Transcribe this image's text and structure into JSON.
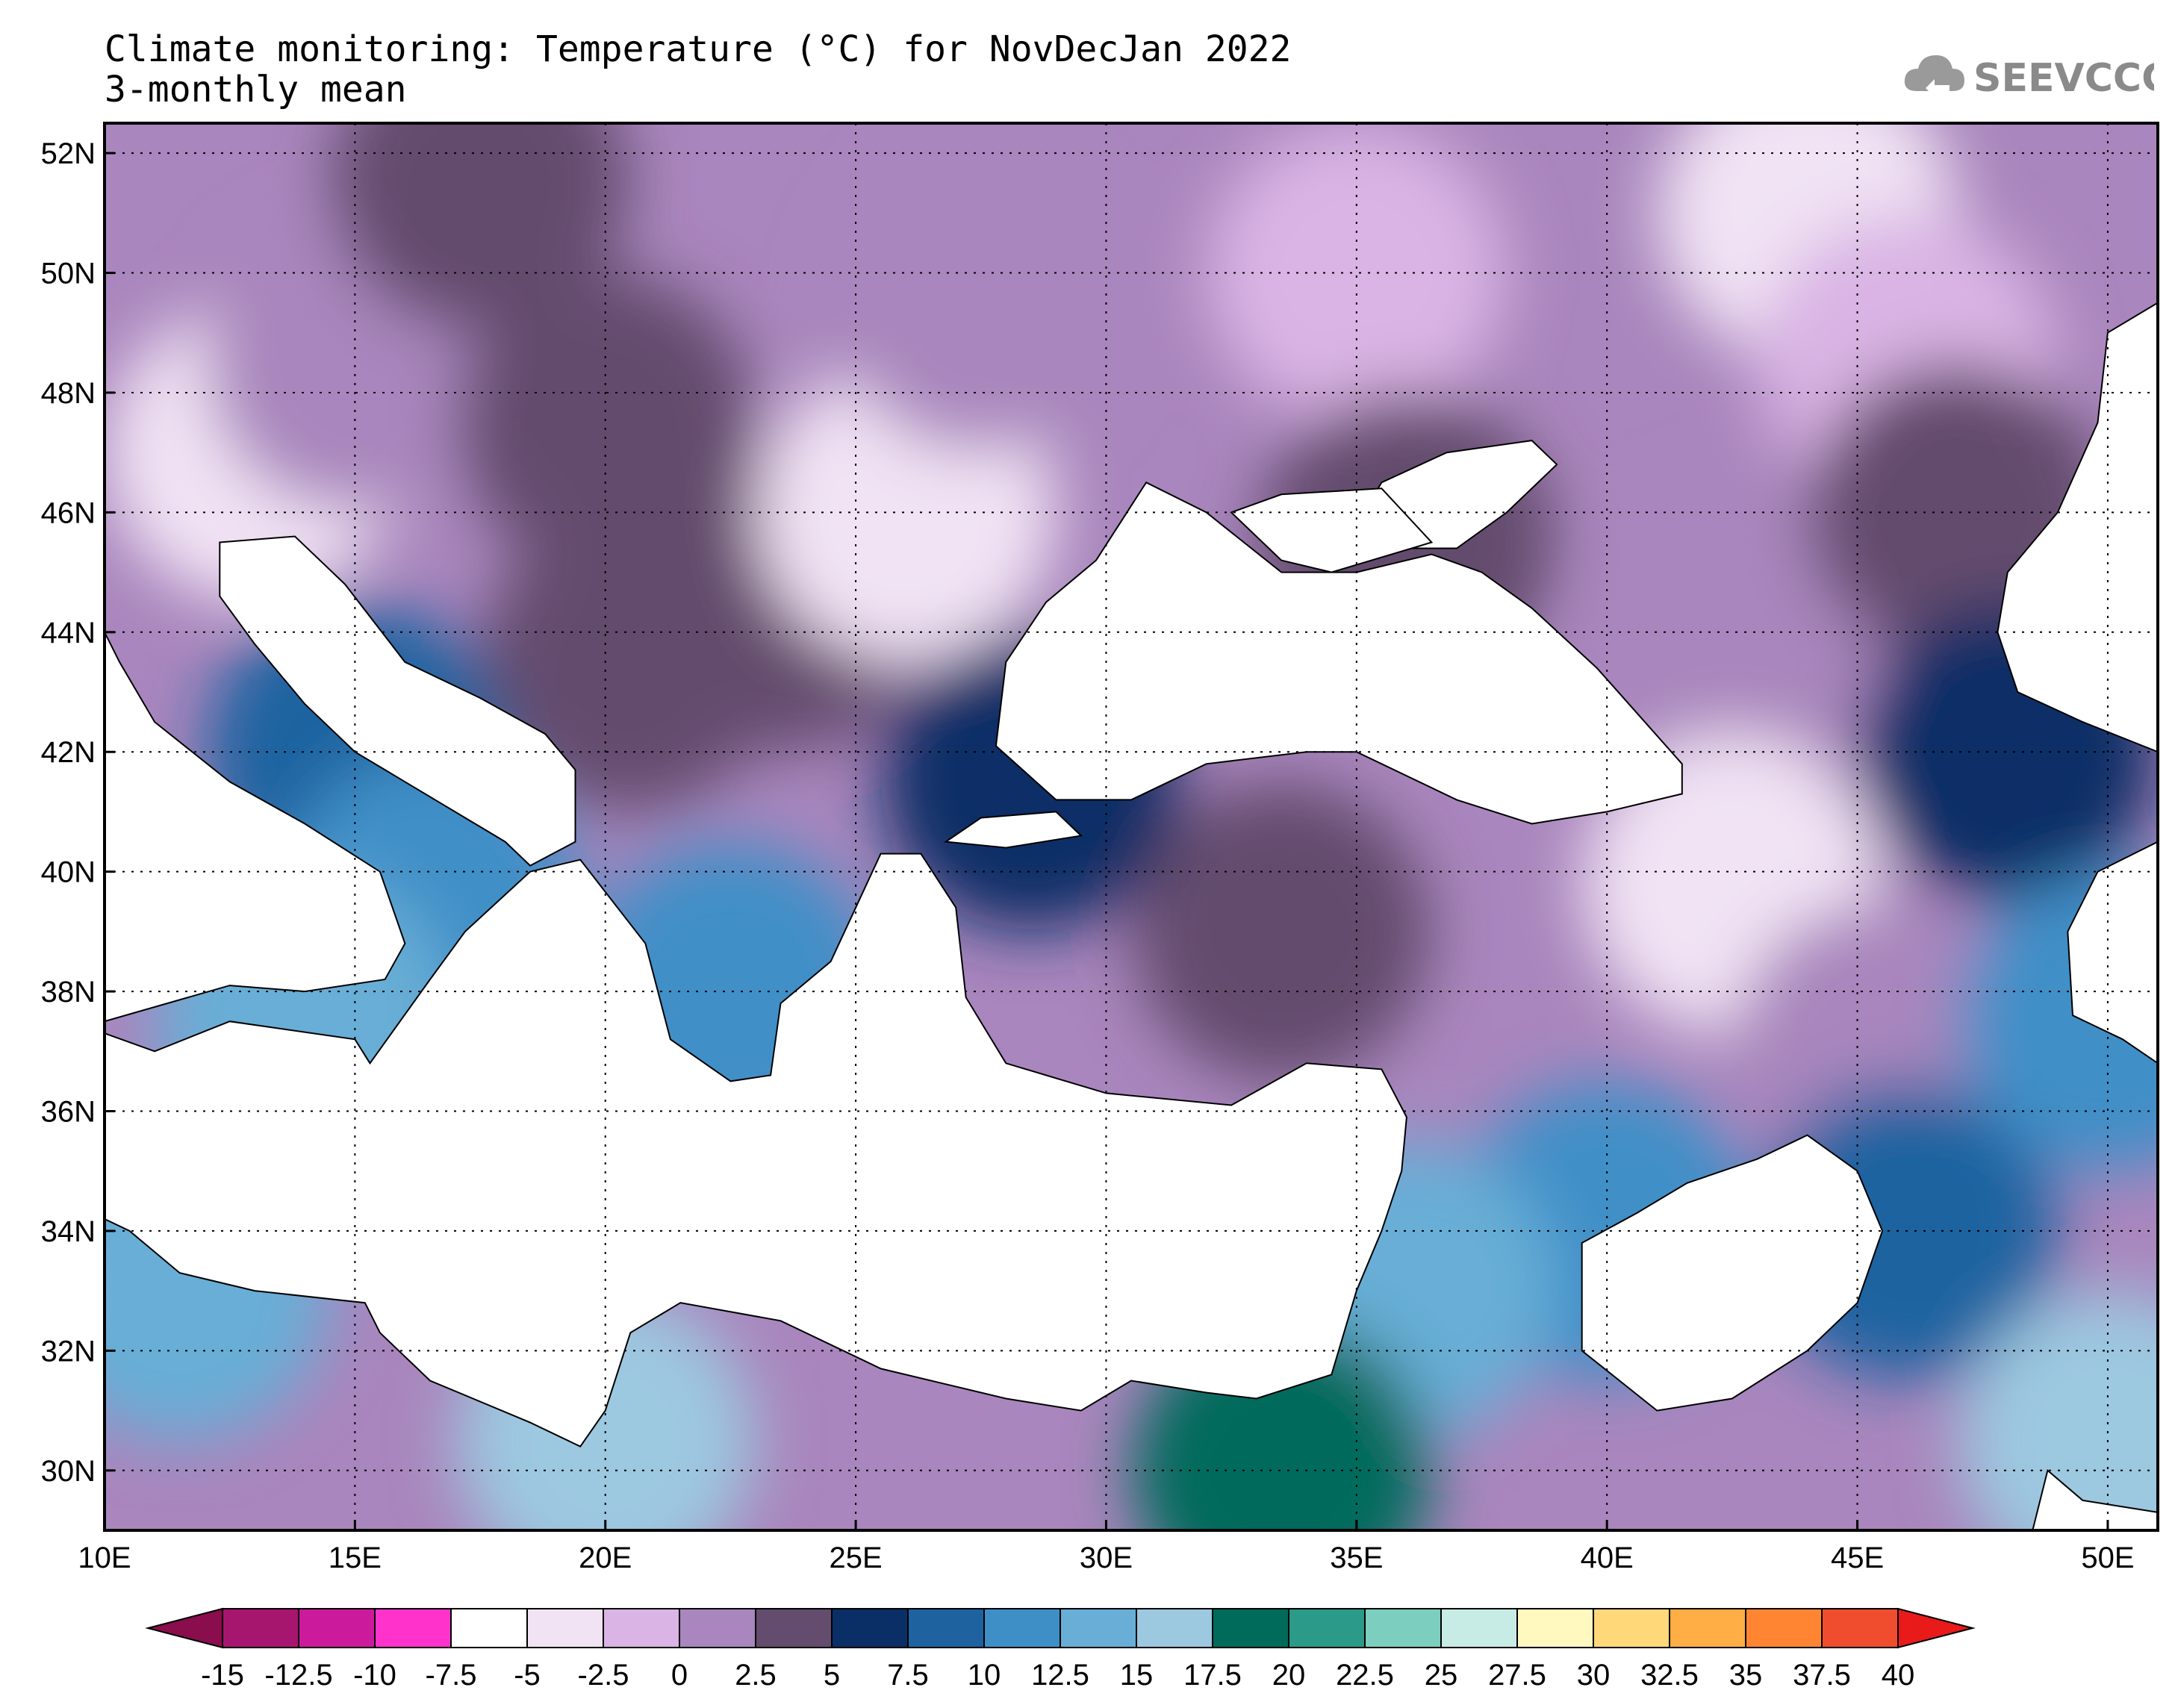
{
  "header": {
    "title": "Climate monitoring: Temperature (°C) for NovDecJan 2022",
    "subtitle": "3-monthly mean"
  },
  "logo": {
    "text": "SEEVCCC",
    "icon": "cloud-icon"
  },
  "chart_data": {
    "type": "heatmap",
    "variable": "Temperature (°C)",
    "period": "NovDecJan 2022",
    "statistic": "3-monthly mean",
    "x_axis": {
      "range": [
        10,
        51
      ],
      "ticks": [
        "10E",
        "15E",
        "20E",
        "25E",
        "30E",
        "35E",
        "40E",
        "45E",
        "50E"
      ]
    },
    "y_axis": {
      "range": [
        29,
        52.5
      ],
      "ticks": [
        "30N",
        "32N",
        "34N",
        "36N",
        "38N",
        "40N",
        "42N",
        "44N",
        "46N",
        "48N",
        "50N",
        "52N"
      ]
    },
    "grid": true,
    "colorbar": {
      "levels": [
        "-15",
        "-12.5",
        "-10",
        "-7.5",
        "-5",
        "-2.5",
        "0",
        "2.5",
        "5",
        "7.5",
        "10",
        "12.5",
        "15",
        "17.5",
        "20",
        "22.5",
        "25",
        "27.5",
        "30",
        "32.5",
        "35",
        "37.5",
        "40"
      ],
      "colors": [
        "#8a0d4e",
        "#a6166f",
        "#cc1a9c",
        "#ff33cc",
        "#ffffff",
        "#f1e3f4",
        "#d9b4e4",
        "#a986bd",
        "#634c6d",
        "#0a2f66",
        "#1e63a0",
        "#3f8fc7",
        "#68aed6",
        "#9cc8e0",
        "#006b5b",
        "#2b9a89",
        "#7ccebe",
        "#c7ece5",
        "#fff8bf",
        "#ffd87a",
        "#ffad45",
        "#ff8533",
        "#f04d2e",
        "#e81a1a"
      ]
    },
    "regions": [
      {
        "lon": 13.0,
        "lat": 47.0,
        "value": -3.5
      },
      {
        "lon": 15.0,
        "lat": 48.5,
        "value": 1.5
      },
      {
        "lon": 17.5,
        "lat": 51.5,
        "value": 3.0
      },
      {
        "lon": 20.0,
        "lat": 47.5,
        "value": 3.5
      },
      {
        "lon": 20.5,
        "lat": 43.5,
        "value": 4.0
      },
      {
        "lon": 23.5,
        "lat": 44.5,
        "value": 3.5
      },
      {
        "lon": 26.0,
        "lat": 46.0,
        "value": -4.0
      },
      {
        "lon": 27.5,
        "lat": 49.5,
        "value": 0.5
      },
      {
        "lon": 35.0,
        "lat": 50.0,
        "value": -1.5
      },
      {
        "lon": 44.0,
        "lat": 51.0,
        "value": -4.0
      },
      {
        "lon": 46.0,
        "lat": 48.5,
        "value": -1.0
      },
      {
        "lon": 42.5,
        "lat": 44.0,
        "value": 1.0
      },
      {
        "lon": 47.0,
        "lat": 46.0,
        "value": 3.5
      },
      {
        "lon": 36.0,
        "lat": 45.5,
        "value": 3.5
      },
      {
        "lon": 42.5,
        "lat": 39.8,
        "value": -4.5
      },
      {
        "lon": 45.5,
        "lat": 37.0,
        "value": 2.0
      },
      {
        "lon": 33.5,
        "lat": 39.0,
        "value": 4.5
      },
      {
        "lon": 28.5,
        "lat": 41.5,
        "value": 6.0
      },
      {
        "lon": 48.0,
        "lat": 42.0,
        "value": 6.0
      },
      {
        "lon": 46.0,
        "lat": 34.0,
        "value": 7.5
      },
      {
        "lon": 50.0,
        "lat": 37.5,
        "value": 11.5
      },
      {
        "lon": 40.0,
        "lat": 34.0,
        "value": 11.0
      },
      {
        "lon": 36.0,
        "lat": 33.0,
        "value": 14.0
      },
      {
        "lon": 33.5,
        "lat": 30.0,
        "value": 18.0
      },
      {
        "lon": 15.0,
        "lat": 42.0,
        "value": 9.0
      },
      {
        "lon": 16.5,
        "lat": 39.5,
        "value": 12.0
      },
      {
        "lon": 22.5,
        "lat": 38.0,
        "value": 11.5
      },
      {
        "lon": 14.0,
        "lat": 37.5,
        "value": 14.0
      },
      {
        "lon": 20.0,
        "lat": 30.5,
        "value": 15.5
      },
      {
        "lon": 11.5,
        "lat": 33.0,
        "value": 13.0
      },
      {
        "lon": 50.0,
        "lat": 30.5,
        "value": 15.0
      }
    ]
  }
}
